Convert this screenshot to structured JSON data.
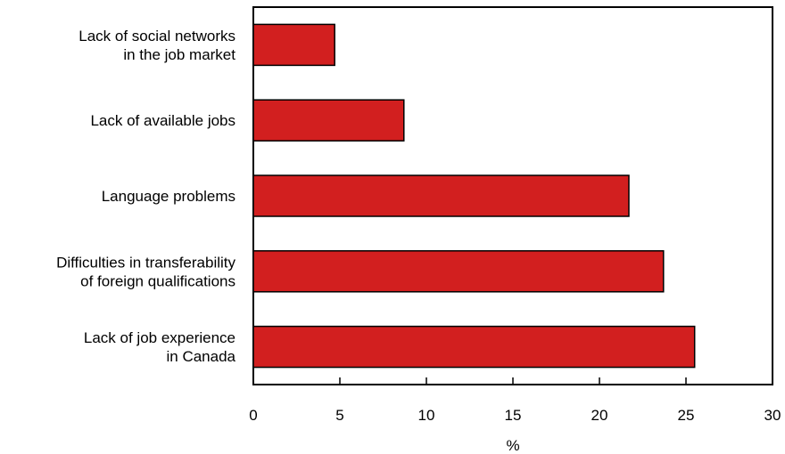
{
  "chart_data": {
    "type": "bar",
    "orientation": "horizontal",
    "title": "",
    "xlabel": "%",
    "ylabel": "",
    "xlim": [
      0,
      30
    ],
    "xticks": [
      0,
      5,
      10,
      15,
      20,
      25,
      30
    ],
    "grid": false,
    "legend": "none",
    "categories": [
      [
        "Lack of social networks",
        "in the job market"
      ],
      [
        "Lack of available jobs"
      ],
      [
        "Language problems"
      ],
      [
        "Difficulties in transferability",
        "of foreign qualifications"
      ],
      [
        "Lack of job experience",
        "in Canada"
      ]
    ],
    "values": [
      4.7,
      8.7,
      21.7,
      23.7,
      25.5
    ],
    "colors": {
      "bar_fill": "#d21f1f",
      "bar_stroke": "#000000",
      "axis": "#000000"
    }
  }
}
